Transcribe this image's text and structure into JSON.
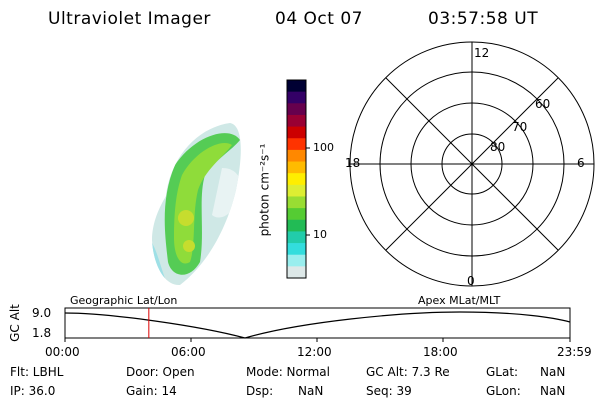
{
  "header": {
    "title": "Ultraviolet Imager",
    "date": "04 Oct 07",
    "time": "03:57:58 UT"
  },
  "colorbar": {
    "unit_label": "photon cm⁻²s⁻¹",
    "ticks": [
      "100",
      "10"
    ],
    "colors": [
      "#000033",
      "#330066",
      "#66004d",
      "#990033",
      "#cc0000",
      "#ff3300",
      "#ff8800",
      "#ffbb00",
      "#ffee00",
      "#ddee33",
      "#99dd33",
      "#55cc33",
      "#22bb55",
      "#22ccaa",
      "#33dddd",
      "#99eeee",
      "#dde8e8"
    ]
  },
  "polar_plot": {
    "mlt_labels": [
      "12",
      "18",
      "6",
      "0"
    ],
    "lat_labels": [
      "60",
      "70",
      "80"
    ]
  },
  "timeline": {
    "ylabel": "GC Alt",
    "ytick_top": "9.0",
    "ytick_bottom": "1.8",
    "left_caption": "Geographic Lat/Lon",
    "right_caption": "Apex MLat/MLT",
    "xticks": [
      "00:00",
      "06:00",
      "12:00",
      "18:00",
      "23:59"
    ],
    "marker_time_fraction": 0.166,
    "marker_color": "#dd0000"
  },
  "status": {
    "flt": "Flt: LBHL",
    "ip": "IP: 36.0",
    "door": "Door: Open",
    "gain": "Gain: 14",
    "mode": "Mode: Normal",
    "dsp": "Dsp:",
    "dsp_val": "NaN",
    "gcalt": "GC Alt: 7.3 Re",
    "seq": "Seq: 39",
    "glat": "GLat:",
    "glat_val": "NaN",
    "glon": "GLon:",
    "glon_val": "NaN"
  }
}
